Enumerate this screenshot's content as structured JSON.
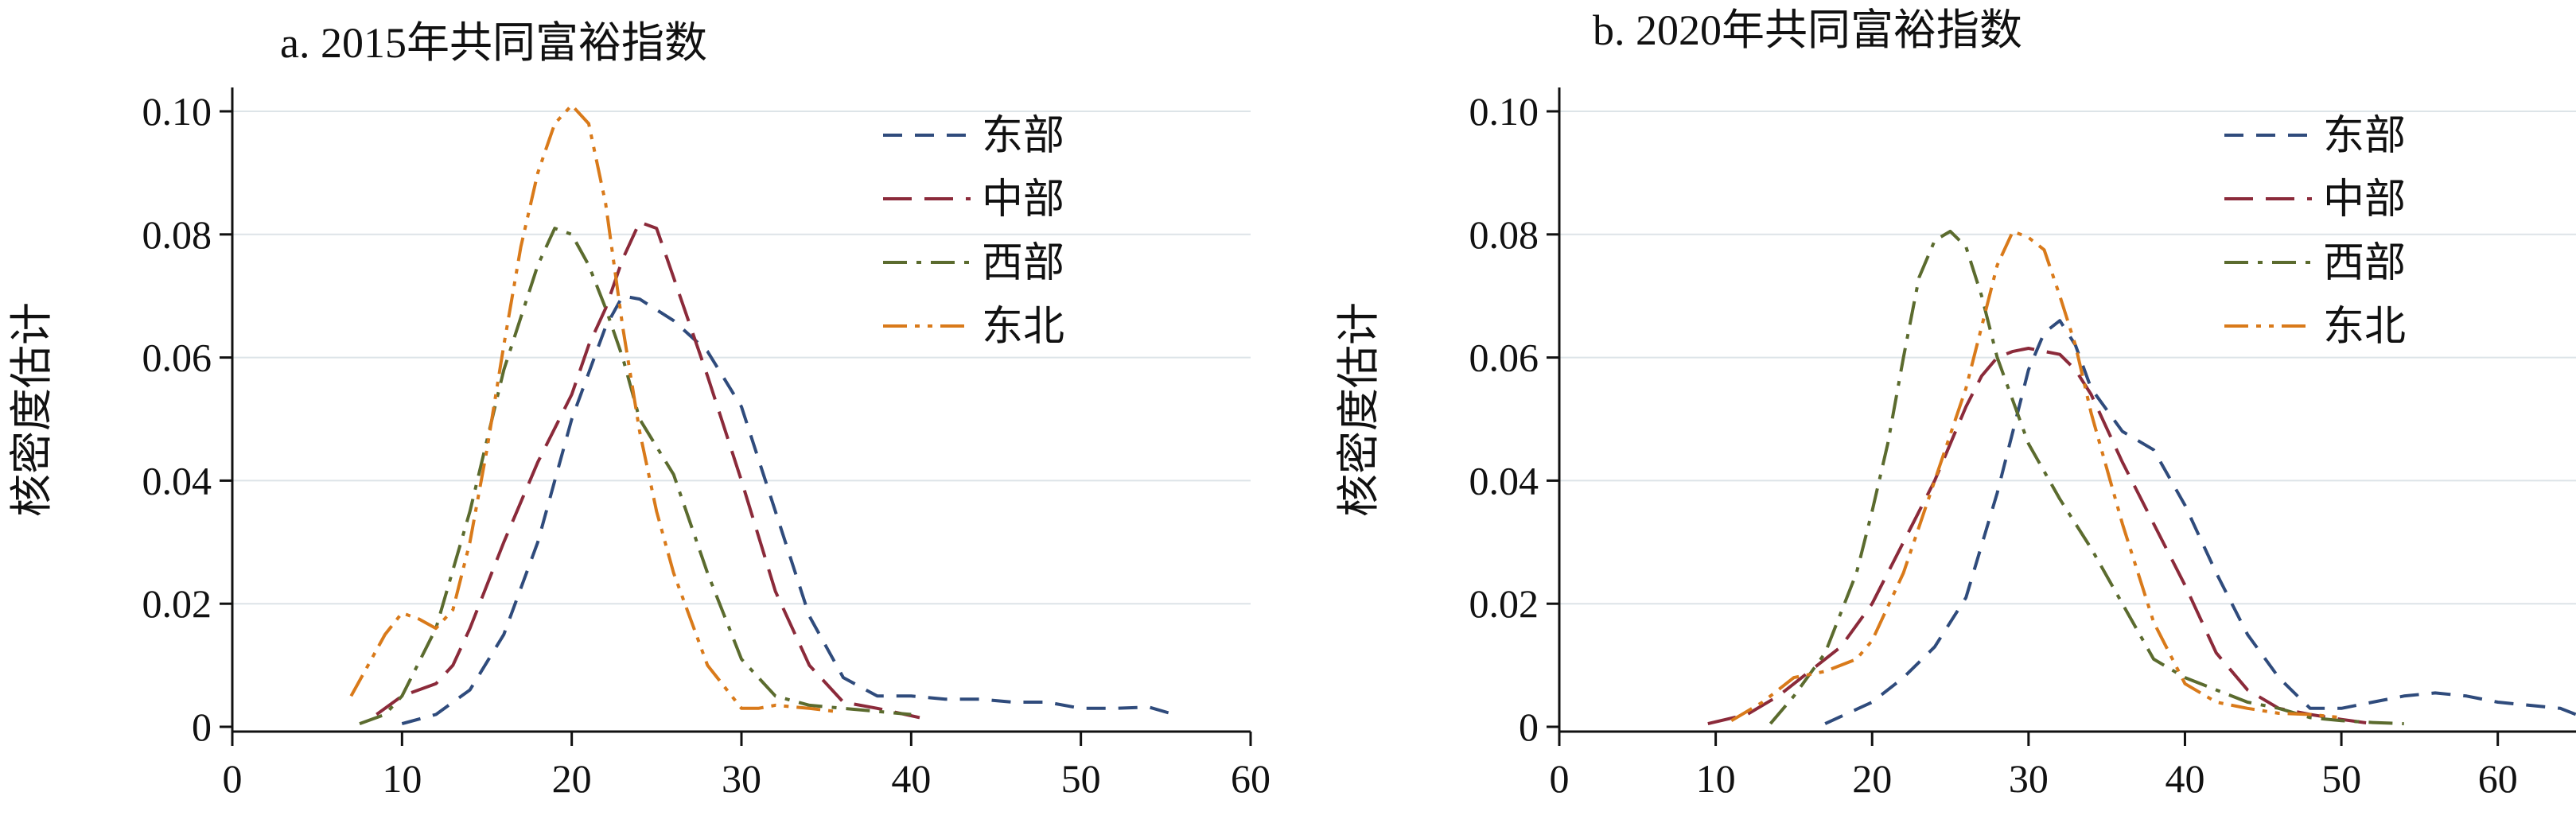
{
  "chart_data": [
    {
      "type": "line",
      "title": "a. 2015年共同富裕指数",
      "xlabel": "",
      "ylabel": "核密度估计",
      "xlim": [
        0,
        60
      ],
      "ylim": [
        0,
        0.1
      ],
      "xticks": [
        "0",
        "10",
        "20",
        "30",
        "40",
        "50",
        "60"
      ],
      "yticks": [
        "0",
        "0.02",
        "0.04",
        "0.06",
        "0.08",
        "0.10"
      ],
      "grid": true,
      "legend_position": "top-right",
      "series": [
        {
          "name": "东部",
          "color": "#2f4b7c",
          "dash": "dash",
          "x": [
            10,
            12,
            14,
            16,
            18,
            20,
            22,
            23,
            24,
            26,
            28,
            30,
            32,
            34,
            36,
            38,
            40,
            42,
            44,
            46,
            48,
            50,
            52,
            54,
            55.5
          ],
          "y": [
            0.0005,
            0.002,
            0.006,
            0.015,
            0.03,
            0.05,
            0.065,
            0.07,
            0.0695,
            0.066,
            0.061,
            0.052,
            0.035,
            0.018,
            0.008,
            0.005,
            0.005,
            0.0045,
            0.0045,
            0.004,
            0.004,
            0.003,
            0.003,
            0.0032,
            0.002
          ]
        },
        {
          "name": "中部",
          "color": "#8b2a3a",
          "dash": "longdash",
          "x": [
            8.5,
            10,
            12,
            13,
            14,
            16,
            18,
            20,
            21,
            22,
            23,
            24,
            25,
            26,
            28,
            30,
            32,
            34,
            36,
            38,
            40.5
          ],
          "y": [
            0.002,
            0.005,
            0.007,
            0.01,
            0.016,
            0.03,
            0.043,
            0.054,
            0.062,
            0.068,
            0.076,
            0.082,
            0.081,
            0.073,
            0.057,
            0.04,
            0.022,
            0.01,
            0.004,
            0.003,
            0.0015
          ]
        },
        {
          "name": "西部",
          "color": "#5b6b2e",
          "dash": "dashdot",
          "x": [
            7.5,
            9,
            10,
            12,
            14,
            16,
            18,
            19,
            20,
            21,
            22,
            23,
            24,
            26,
            28,
            30,
            32,
            34,
            36,
            38,
            40
          ],
          "y": [
            0.0005,
            0.002,
            0.005,
            0.016,
            0.035,
            0.058,
            0.075,
            0.081,
            0.08,
            0.075,
            0.068,
            0.06,
            0.05,
            0.041,
            0.025,
            0.011,
            0.005,
            0.0035,
            0.003,
            0.0025,
            0.002
          ]
        },
        {
          "name": "东北",
          "color": "#d97a1a",
          "dash": "dashdotdot",
          "x": [
            7,
            8,
            9,
            10,
            11,
            12,
            13,
            14,
            15,
            16,
            17,
            18,
            19,
            20,
            21,
            22,
            23,
            24,
            25,
            26,
            28,
            30,
            31,
            32,
            34,
            35.5
          ],
          "y": [
            0.005,
            0.01,
            0.015,
            0.0185,
            0.0175,
            0.016,
            0.019,
            0.03,
            0.045,
            0.062,
            0.078,
            0.09,
            0.098,
            0.101,
            0.098,
            0.085,
            0.065,
            0.048,
            0.035,
            0.025,
            0.01,
            0.003,
            0.003,
            0.0035,
            0.003,
            0.0025
          ]
        }
      ]
    },
    {
      "type": "line",
      "title": "b. 2020年共同富裕指数",
      "xlabel": "",
      "ylabel": "核密度估计",
      "xlim": [
        0,
        65
      ],
      "ylim": [
        0,
        0.1
      ],
      "xticks": [
        "0",
        "10",
        "20",
        "30",
        "40",
        "50",
        "60"
      ],
      "yticks": [
        "0",
        "0.02",
        "0.04",
        "0.06",
        "0.08",
        "0.10"
      ],
      "grid": true,
      "legend_position": "top-right",
      "series": [
        {
          "name": "东部",
          "color": "#2f4b7c",
          "dash": "dash",
          "x": [
            17,
            20,
            22,
            24,
            26,
            28,
            29,
            30,
            31,
            32,
            33,
            34,
            36,
            38,
            40,
            42,
            44,
            46,
            48,
            50,
            52,
            54,
            56,
            58,
            60,
            62,
            64,
            65
          ],
          "y": [
            0.0005,
            0.004,
            0.008,
            0.013,
            0.021,
            0.038,
            0.048,
            0.058,
            0.064,
            0.066,
            0.062,
            0.055,
            0.048,
            0.045,
            0.036,
            0.025,
            0.015,
            0.008,
            0.003,
            0.003,
            0.004,
            0.005,
            0.0055,
            0.005,
            0.004,
            0.0035,
            0.003,
            0.002
          ]
        },
        {
          "name": "中部",
          "color": "#8b2a3a",
          "dash": "longdash",
          "x": [
            9.5,
            12,
            14,
            16,
            18,
            20,
            22,
            24,
            26,
            27,
            28,
            29,
            30,
            32,
            33,
            34,
            36,
            38,
            40,
            42,
            44,
            46,
            48,
            50,
            52
          ],
          "y": [
            0.0005,
            0.002,
            0.005,
            0.009,
            0.013,
            0.02,
            0.03,
            0.04,
            0.052,
            0.057,
            0.06,
            0.061,
            0.0615,
            0.0605,
            0.058,
            0.054,
            0.043,
            0.033,
            0.023,
            0.012,
            0.006,
            0.003,
            0.002,
            0.0012,
            0.0005
          ]
        },
        {
          "name": "西部",
          "color": "#5b6b2e",
          "dash": "dashdot",
          "x": [
            13.5,
            15,
            17,
            19,
            20,
            21,
            22,
            23,
            24,
            25,
            26,
            27,
            28,
            30,
            32,
            34,
            36,
            38,
            40,
            42,
            44,
            46,
            48,
            50,
            52,
            54
          ],
          "y": [
            0.0005,
            0.005,
            0.012,
            0.025,
            0.035,
            0.046,
            0.06,
            0.073,
            0.079,
            0.0805,
            0.078,
            0.07,
            0.06,
            0.046,
            0.037,
            0.029,
            0.02,
            0.011,
            0.008,
            0.006,
            0.004,
            0.003,
            0.0015,
            0.001,
            0.0007,
            0.0005
          ]
        },
        {
          "name": "东北",
          "color": "#d97a1a",
          "dash": "dashdotdot",
          "x": [
            11,
            13,
            15,
            17,
            19,
            20,
            22,
            24,
            26,
            27,
            28,
            29,
            30,
            31,
            32,
            33,
            34,
            36,
            38,
            40,
            42,
            44,
            46,
            48,
            50
          ],
          "y": [
            0.001,
            0.004,
            0.008,
            0.009,
            0.011,
            0.014,
            0.025,
            0.04,
            0.055,
            0.065,
            0.075,
            0.0805,
            0.0795,
            0.0775,
            0.07,
            0.062,
            0.051,
            0.033,
            0.017,
            0.007,
            0.004,
            0.003,
            0.0022,
            0.002,
            0.0015
          ]
        }
      ]
    }
  ]
}
